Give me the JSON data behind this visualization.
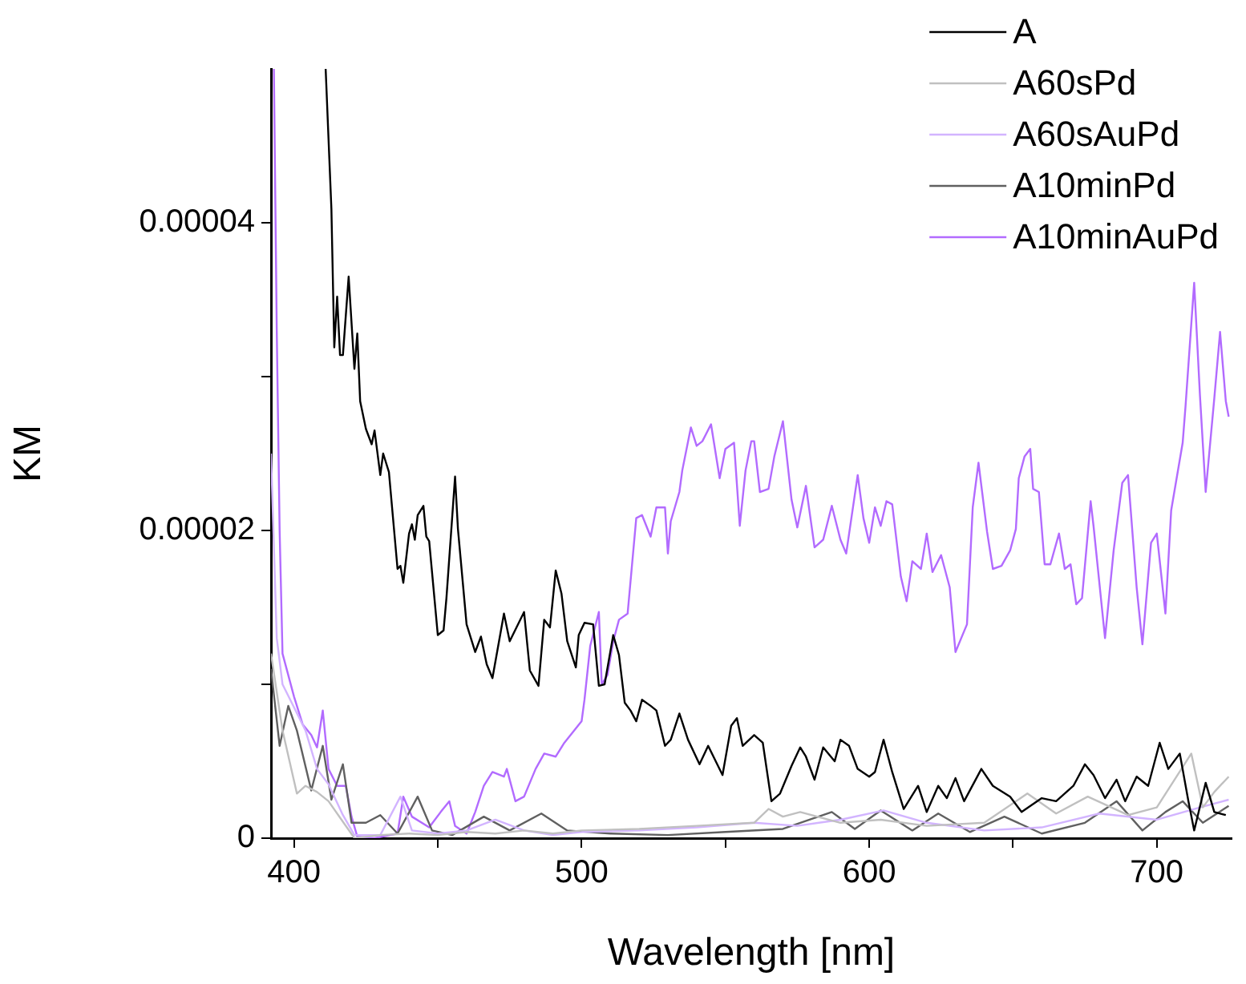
{
  "chart_data": {
    "type": "line",
    "xlabel": "Wavelength [nm]",
    "ylabel": "KM",
    "xlim": [
      392,
      726
    ],
    "ylim": [
      0,
      5e-05
    ],
    "xticks": [
      400,
      {
        "value": 450,
        "label": null
      },
      500,
      {
        "value": 550,
        "label": null
      },
      600,
      {
        "value": 650,
        "label": null
      },
      700
    ],
    "yticks": [
      {
        "value": 0,
        "label": "0"
      },
      {
        "value": 1e-05,
        "label": null
      },
      {
        "value": 2e-05,
        "label": "0.00002"
      },
      {
        "value": 3e-05,
        "label": null
      },
      {
        "value": 4e-05,
        "label": "0.00004"
      }
    ],
    "grid": false,
    "legend": "top right",
    "marker": "none",
    "line_style": "solid",
    "series": [
      {
        "name": "A",
        "color": "#000000",
        "x": [
          411,
          413,
          414,
          415,
          416,
          417,
          419,
          421,
          422,
          423,
          425,
          427,
          428,
          430,
          431,
          433,
          436,
          437,
          438,
          440,
          441,
          442,
          443,
          445,
          446,
          447,
          450,
          452,
          453,
          456,
          457,
          460,
          463,
          465,
          467,
          469,
          473,
          475,
          480,
          482,
          485,
          487,
          489,
          491,
          493,
          495,
          498,
          499,
          501,
          504,
          506,
          508,
          511,
          513,
          515,
          517,
          519,
          521,
          524,
          526,
          529,
          531,
          534,
          537,
          541,
          544,
          549,
          552,
          554,
          556,
          560,
          563,
          566,
          569,
          573,
          576,
          578,
          581,
          584,
          588,
          590,
          593,
          596,
          600,
          602,
          605,
          608,
          612,
          617,
          620,
          624,
          627,
          630,
          633,
          639,
          643,
          649,
          653,
          660,
          665,
          671,
          675,
          678,
          682,
          686,
          689,
          693,
          697,
          701,
          704,
          708,
          711,
          713,
          717,
          720,
          724
        ],
        "values": [
          5e-05,
          4.09e-05,
          3.19e-05,
          3.52e-05,
          3.14e-05,
          3.14e-05,
          3.65e-05,
          3.05e-05,
          3.28e-05,
          2.84e-05,
          2.66e-05,
          2.56e-05,
          2.65e-05,
          2.36e-05,
          2.5e-05,
          2.38e-05,
          1.75e-05,
          1.77e-05,
          1.66e-05,
          1.98e-05,
          2.04e-05,
          1.94e-05,
          2.1e-05,
          2.16e-05,
          1.96e-05,
          1.93e-05,
          1.32e-05,
          1.35e-05,
          1.56e-05,
          2.35e-05,
          2.01e-05,
          1.39e-05,
          1.21e-05,
          1.31e-05,
          1.13e-05,
          1.04e-05,
          1.46e-05,
          1.28e-05,
          1.47e-05,
          1.09e-05,
          9.9e-06,
          1.42e-05,
          1.37e-05,
          1.74e-05,
          1.59e-05,
          1.28e-05,
          1.11e-05,
          1.32e-05,
          1.4e-05,
          1.39e-05,
          9.9e-06,
          1e-05,
          1.32e-05,
          1.19e-05,
          8.8e-06,
          8.3e-06,
          7.6e-06,
          9e-06,
          8.6e-06,
          8.3e-06,
          6e-06,
          6.4e-06,
          8.1e-06,
          6.4e-06,
          4.8e-06,
          6e-06,
          4.1e-06,
          7.3e-06,
          7.8e-06,
          6e-06,
          6.7e-06,
          6.2e-06,
          2.4e-06,
          2.9e-06,
          4.7e-06,
          5.9e-06,
          5.3e-06,
          3.8e-06,
          5.9e-06,
          5e-06,
          6.4e-06,
          6e-06,
          4.5e-06,
          4e-06,
          4.3e-06,
          6.4e-06,
          4.3e-06,
          1.9e-06,
          3.4e-06,
          1.7e-06,
          3.4e-06,
          2.6e-06,
          3.9e-06,
          2.4e-06,
          4.5e-06,
          3.4e-06,
          2.7e-06,
          1.7e-06,
          2.6e-06,
          2.4e-06,
          3.4e-06,
          4.8e-06,
          4.1e-06,
          2.6e-06,
          3.8e-06,
          2.4e-06,
          4e-06,
          3.4e-06,
          6.2e-06,
          4.5e-06,
          5.5e-06,
          2.4e-06,
          5e-07,
          3.6e-06,
          1.7e-06,
          1.5e-06
        ]
      },
      {
        "name": "A60sPd",
        "color": "#c0c0c0",
        "x": [
          392,
          396,
          401,
          404,
          408,
          412,
          421,
          430,
          440,
          450,
          460,
          470,
          480,
          490,
          500,
          520,
          540,
          560,
          565,
          570,
          576,
          590,
          604,
          620,
          640,
          655,
          665,
          676,
          690,
          700,
          712,
          716,
          720,
          725
        ],
        "values": [
          1.2e-05,
          7e-06,
          2.9e-06,
          3.4e-06,
          3e-06,
          2.4e-06,
          0,
          2e-07,
          3e-07,
          2e-07,
          4e-07,
          3e-07,
          5e-07,
          3e-07,
          5e-07,
          6e-07,
          8e-07,
          1e-06,
          1.9e-06,
          1.4e-06,
          1.7e-06,
          1e-06,
          1.2e-06,
          8e-07,
          1e-06,
          2.9e-06,
          1.6e-06,
          2.7e-06,
          1.5e-06,
          2e-06,
          5.5e-06,
          2e-06,
          3e-06,
          4e-06
        ]
      },
      {
        "name": "A60sAuPd",
        "color": "#d2b4ff",
        "x": [
          392,
          394,
          396,
          400,
          404,
          408,
          412,
          417,
          421,
          430,
          437,
          441,
          450,
          460,
          470,
          480,
          490,
          500,
          520,
          540,
          560,
          575,
          590,
          605,
          620,
          640,
          660,
          680,
          700,
          715,
          725
        ],
        "values": [
          2.5e-05,
          1.3e-05,
          1e-05,
          8.5e-06,
          7e-06,
          4.5e-06,
          3.5e-06,
          1.5e-06,
          2e-07,
          2e-07,
          2.7e-06,
          5e-07,
          3e-07,
          5e-07,
          1.2e-06,
          5e-07,
          2e-07,
          4e-07,
          5e-07,
          7e-07,
          1e-06,
          8e-07,
          1.2e-06,
          1.8e-06,
          1e-06,
          5e-07,
          7e-07,
          1.6e-06,
          1.2e-06,
          2e-06,
          2.5e-06
        ]
      },
      {
        "name": "A10minPd",
        "color": "#606060",
        "x": [
          392,
          395,
          398,
          401,
          406,
          410,
          413,
          417,
          420,
          425,
          430,
          436,
          443,
          448,
          455,
          466,
          475,
          486,
          495,
          510,
          530,
          550,
          570,
          587,
          595,
          604,
          615,
          624,
          635,
          647,
          660,
          675,
          686,
          695,
          703,
          709,
          716,
          725
        ],
        "values": [
          1.1e-05,
          6e-06,
          8.6e-06,
          7e-06,
          3.1e-06,
          6e-06,
          2.5e-06,
          4.8e-06,
          1e-06,
          1e-06,
          1.5e-06,
          3e-07,
          2.7e-06,
          5e-07,
          2e-07,
          1.4e-06,
          5e-07,
          1.6e-06,
          5e-07,
          3e-07,
          2e-07,
          4e-07,
          6e-07,
          1.7e-06,
          6e-07,
          1.8e-06,
          5e-07,
          1.6e-06,
          4e-07,
          1.4e-06,
          3e-07,
          1e-06,
          2.4e-06,
          5e-07,
          1.7e-06,
          2.4e-06,
          1e-06,
          2.1e-06
        ]
      },
      {
        "name": "A10minAuPd",
        "color": "#b26bff",
        "x": [
          393,
          394,
          395,
          396,
          400,
          403,
          406,
          408,
          410,
          412,
          415,
          418,
          420,
          422,
          428,
          436,
          438,
          441,
          447,
          451,
          454,
          456,
          460,
          463,
          466,
          469,
          473,
          474,
          477,
          480,
          484,
          487,
          491,
          494,
          497,
          500,
          501,
          503,
          506,
          507,
          509,
          511,
          513,
          516,
          519,
          521,
          524,
          526,
          529,
          530,
          531,
          534,
          535,
          538,
          540,
          542,
          545,
          548,
          550,
          553,
          555,
          557,
          559,
          560,
          562,
          565,
          567,
          570,
          573,
          575,
          578,
          581,
          584,
          587,
          590,
          592,
          596,
          598,
          600,
          602,
          604,
          606,
          608,
          611,
          613,
          615,
          618,
          620,
          622,
          625,
          628,
          630,
          632,
          634,
          636,
          638,
          641,
          643,
          646,
          649,
          651,
          652,
          654,
          656,
          657,
          659,
          661,
          663,
          666,
          668,
          670,
          672,
          674,
          677,
          678,
          682,
          685,
          688,
          690,
          693,
          695,
          698,
          700,
          703,
          705,
          709,
          710,
          713,
          715,
          717,
          720,
          722,
          724,
          725
        ],
        "values": [
          5e-05,
          3.3e-05,
          2e-05,
          1.2e-05,
          9.2e-06,
          7.4e-06,
          6.7e-06,
          5.9e-06,
          8.3e-06,
          4.5e-06,
          3.4e-06,
          3.4e-06,
          1.4e-06,
          1e-07,
          0,
          3e-07,
          2.7e-06,
          1.4e-06,
          7e-07,
          1.7e-06,
          2.4e-06,
          8e-07,
          3e-07,
          1.7e-06,
          3.4e-06,
          4.3e-06,
          4e-06,
          4.5e-06,
          2.4e-06,
          2.7e-06,
          4.5e-06,
          5.5e-06,
          5.3e-06,
          6.2e-06,
          6.9e-06,
          7.6e-06,
          9e-06,
          1.25e-05,
          1.47e-05,
          1e-05,
          1.06e-05,
          1.28e-05,
          1.42e-05,
          1.46e-05,
          2.08e-05,
          2.1e-05,
          1.96e-05,
          2.15e-05,
          2.15e-05,
          1.85e-05,
          2.06e-05,
          2.25e-05,
          2.39e-05,
          2.67e-05,
          2.55e-05,
          2.58e-05,
          2.69e-05,
          2.34e-05,
          2.53e-05,
          2.57e-05,
          2.03e-05,
          2.39e-05,
          2.58e-05,
          2.58e-05,
          2.25e-05,
          2.27e-05,
          2.48e-05,
          2.71e-05,
          2.2e-05,
          2.02e-05,
          2.29e-05,
          1.89e-05,
          1.94e-05,
          2.16e-05,
          1.94e-05,
          1.85e-05,
          2.36e-05,
          2.08e-05,
          1.92e-05,
          2.15e-05,
          2.03e-05,
          2.19e-05,
          2.17e-05,
          1.7e-05,
          1.54e-05,
          1.8e-05,
          1.75e-05,
          1.98e-05,
          1.73e-05,
          1.84e-05,
          1.63e-05,
          1.21e-05,
          1.3e-05,
          1.39e-05,
          2.15e-05,
          2.44e-05,
          1.99e-05,
          1.75e-05,
          1.77e-05,
          1.87e-05,
          2.01e-05,
          2.34e-05,
          2.48e-05,
          2.53e-05,
          2.27e-05,
          2.25e-05,
          1.78e-05,
          1.78e-05,
          1.98e-05,
          1.75e-05,
          1.78e-05,
          1.52e-05,
          1.56e-05,
          2.19e-05,
          2.03e-05,
          1.3e-05,
          1.87e-05,
          2.31e-05,
          2.36e-05,
          1.63e-05,
          1.26e-05,
          1.92e-05,
          1.98e-05,
          1.46e-05,
          2.13e-05,
          2.57e-05,
          2.81e-05,
          3.61e-05,
          2.88e-05,
          2.25e-05,
          2.86e-05,
          3.29e-05,
          2.84e-05,
          2.74e-05
        ]
      }
    ]
  }
}
